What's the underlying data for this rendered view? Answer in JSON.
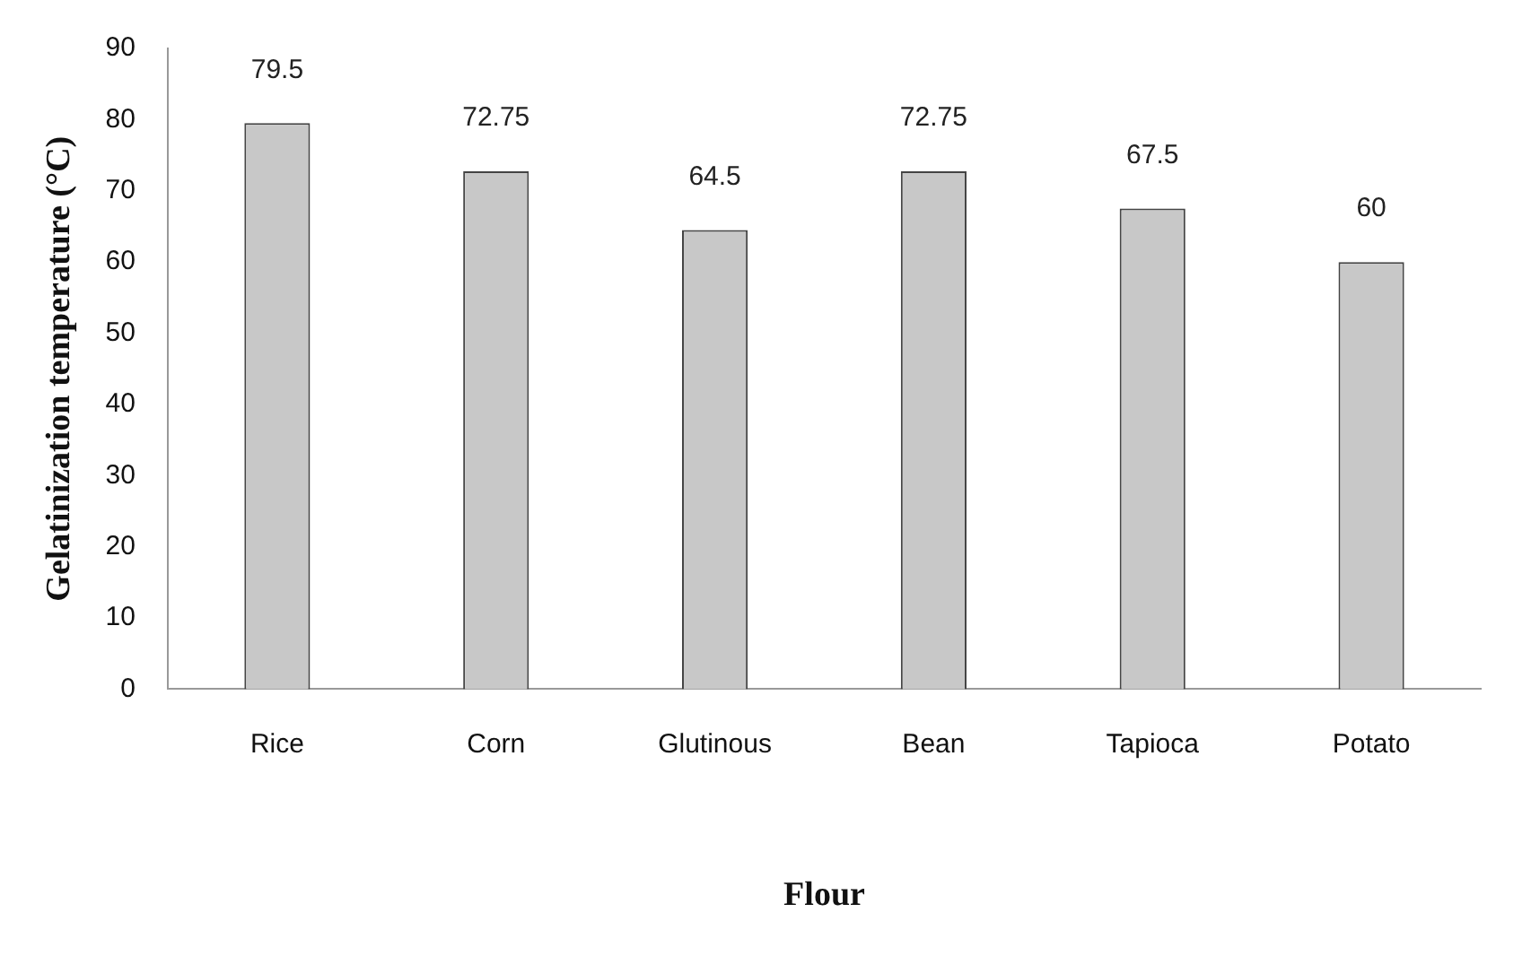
{
  "chart_data": {
    "type": "bar",
    "xlabel": "Flour",
    "ylabel": "Gelatinization temperature (°C)",
    "categories": [
      "Rice",
      "Corn",
      "Glutinous",
      "Bean",
      "Tapioca",
      "Potato"
    ],
    "values": [
      79.5,
      72.75,
      64.5,
      72.75,
      67.5,
      60
    ],
    "color": "#c8c8c8",
    "ylim": [
      0,
      90
    ],
    "yticks": [
      0,
      10,
      20,
      30,
      40,
      50,
      60,
      70,
      80,
      90
    ],
    "grid": false,
    "legend": false,
    "data_labels": true
  }
}
